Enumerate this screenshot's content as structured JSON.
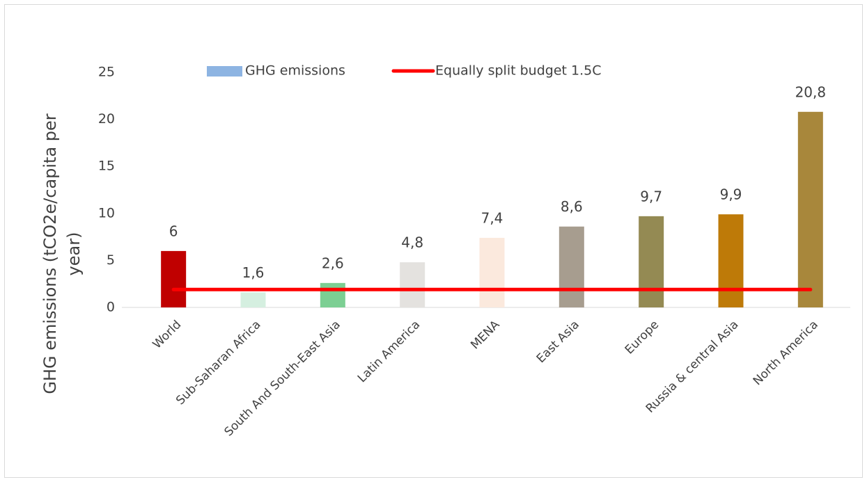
{
  "chart_data": {
    "type": "bar",
    "ylabel": "GHG emissions (tCO2e/capita per year)",
    "categories": [
      "World",
      "Sub-Saharan Africa",
      "South And South-East Asia",
      "Latin America",
      "MENA",
      "East Asia",
      "Europe",
      "Russia & central Asia",
      "North America"
    ],
    "series": [
      {
        "name": "GHG emissions",
        "type": "bar",
        "color": "#8db4e2",
        "colors": [
          "#c00000",
          "#d5efe0",
          "#7ccf93",
          "#e4e2df",
          "#fbe9dd",
          "#a79d8f",
          "#948a53",
          "#be7a08",
          "#a8873b"
        ],
        "values": [
          6,
          1.6,
          2.6,
          4.8,
          7.4,
          8.6,
          9.7,
          9.9,
          20.8
        ],
        "value_labels": [
          "6",
          "1,6",
          "2,6",
          "4,8",
          "7,4",
          "8,6",
          "9,7",
          "9,9",
          "20,8"
        ]
      },
      {
        "name": "Equally split budget 1.5C",
        "type": "line",
        "color": "#ff0000",
        "values": [
          1.9,
          1.9,
          1.9,
          1.9,
          1.9,
          1.9,
          1.9,
          1.9,
          1.9
        ]
      }
    ],
    "ylim": [
      0,
      25
    ],
    "yticks": [
      0,
      5,
      10,
      15,
      20,
      25
    ],
    "grid": false,
    "legend": "top"
  }
}
